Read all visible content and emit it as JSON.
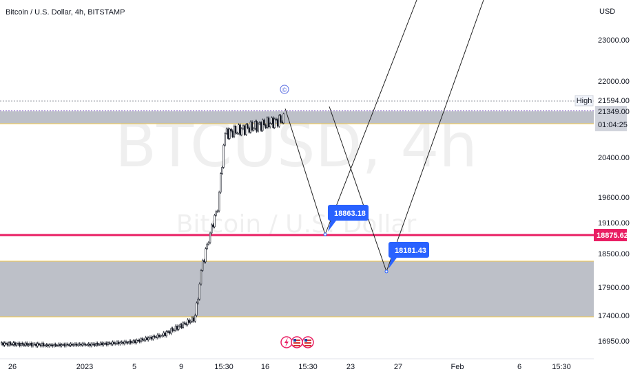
{
  "header": {
    "title": "Bitcoin / U.S. Dollar, 4h, BITSTAMP"
  },
  "watermark": {
    "symbol": "BTCUSD, 4h",
    "name": "Bitcoin / U.S. Dollar"
  },
  "colors": {
    "accent_red": "#e91e63",
    "label_blue": "#2962ff",
    "zone_fill": "#b2b5be",
    "zone_border": "#f2c94c"
  },
  "chart_data": {
    "type": "candlestick",
    "currency": "USD",
    "y_ticks": [
      23000,
      22000,
      20400,
      19600,
      19100,
      18500,
      17900,
      17400,
      16950
    ],
    "x_ticks": [
      "26",
      "2023",
      "5",
      "9",
      "15:30",
      "16",
      "15:30",
      "23",
      "27",
      "Feb",
      "6",
      "15:30"
    ],
    "price_labels": {
      "high_label": "High",
      "high": "21594.00",
      "last": "21349.00",
      "countdown": "01:04:25",
      "support_line": "18875.62"
    },
    "zones": [
      {
        "top": 21349,
        "bottom": 21150
      },
      {
        "top": 18450,
        "bottom": 17350
      }
    ],
    "targets": [
      {
        "label": "18863.18",
        "value": 18863.18
      },
      {
        "label": "18181.43",
        "value": 18181.43
      }
    ]
  },
  "events": {
    "icons": [
      "lightning-icon",
      "us-flag-icon",
      "us-flag-icon"
    ],
    "dividend_marker": "©"
  }
}
